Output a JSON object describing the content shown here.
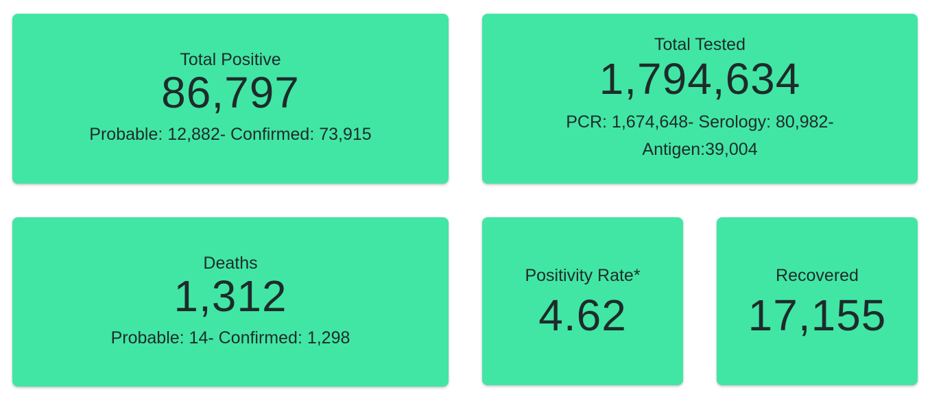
{
  "cards": {
    "total_positive": {
      "title": "Total Positive",
      "value": "86,797",
      "sub": "Probable: 12,882- Confirmed: 73,915"
    },
    "total_tested": {
      "title": "Total Tested",
      "value": "1,794,634",
      "sub_line1": "PCR: 1,674,648- Serology: 80,982-",
      "sub_line2": "Antigen:39,004"
    },
    "deaths": {
      "title": "Deaths",
      "value": "1,312",
      "sub": "Probable: 14- Confirmed: 1,298"
    },
    "positivity_rate": {
      "title": "Positivity Rate*",
      "value": "4.62"
    },
    "recovered": {
      "title": "Recovered",
      "value": "17,155"
    }
  },
  "colors": {
    "card_background": "#41e6a4",
    "text": "#1e2b2a"
  }
}
